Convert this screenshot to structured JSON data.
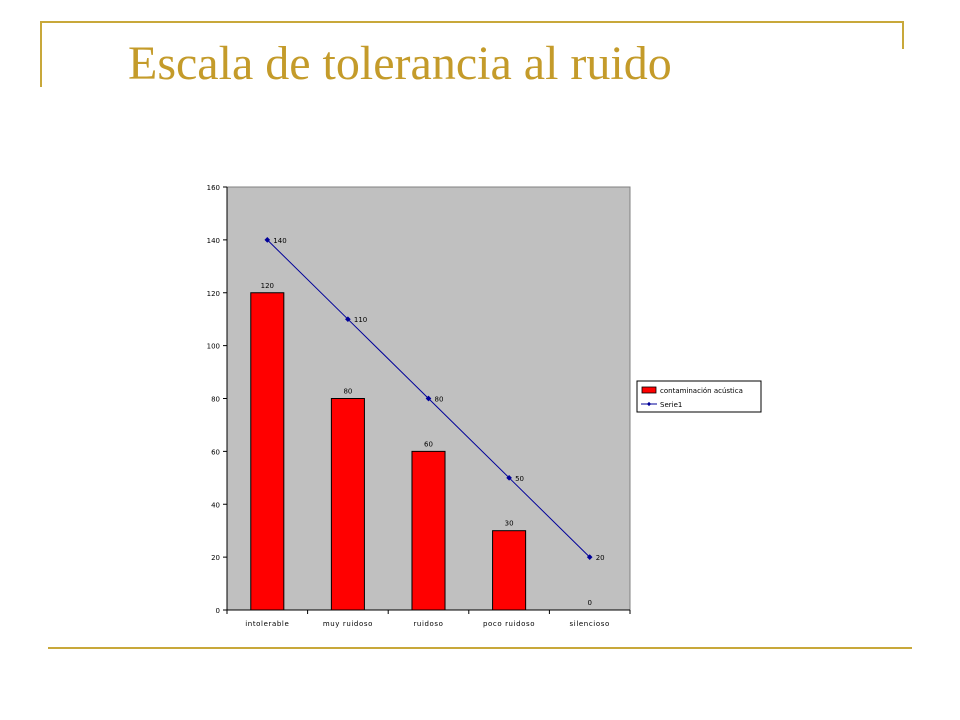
{
  "title": "Escala de tolerancia al ruido",
  "colors": {
    "frame": "#c8a83a",
    "title": "#c49b2a",
    "plot_area": "#c0c0c0",
    "bar": "#ff0000",
    "line": "#000099"
  },
  "chart_data": {
    "type": "bar",
    "title": "",
    "xlabel": "",
    "ylabel": "",
    "ylim": [
      0,
      160
    ],
    "yticks": [
      0,
      20,
      40,
      60,
      80,
      100,
      120,
      140,
      160
    ],
    "grid": false,
    "legend_position": "right",
    "categories": [
      "intolerable",
      "muy ruidoso",
      "ruidoso",
      "poco ruidoso",
      "silencioso"
    ],
    "series": [
      {
        "name": "contaminación acústica",
        "type": "bar",
        "color": "#ff0000",
        "values": [
          120,
          80,
          60,
          30,
          0
        ],
        "labels": [
          "120",
          "80",
          "60",
          "30",
          "0"
        ]
      },
      {
        "name": "Serie1",
        "type": "line",
        "color": "#000099",
        "values": [
          140,
          110,
          80,
          50,
          20
        ],
        "labels": [
          "140",
          "110",
          "80",
          "50",
          "20"
        ]
      }
    ]
  }
}
